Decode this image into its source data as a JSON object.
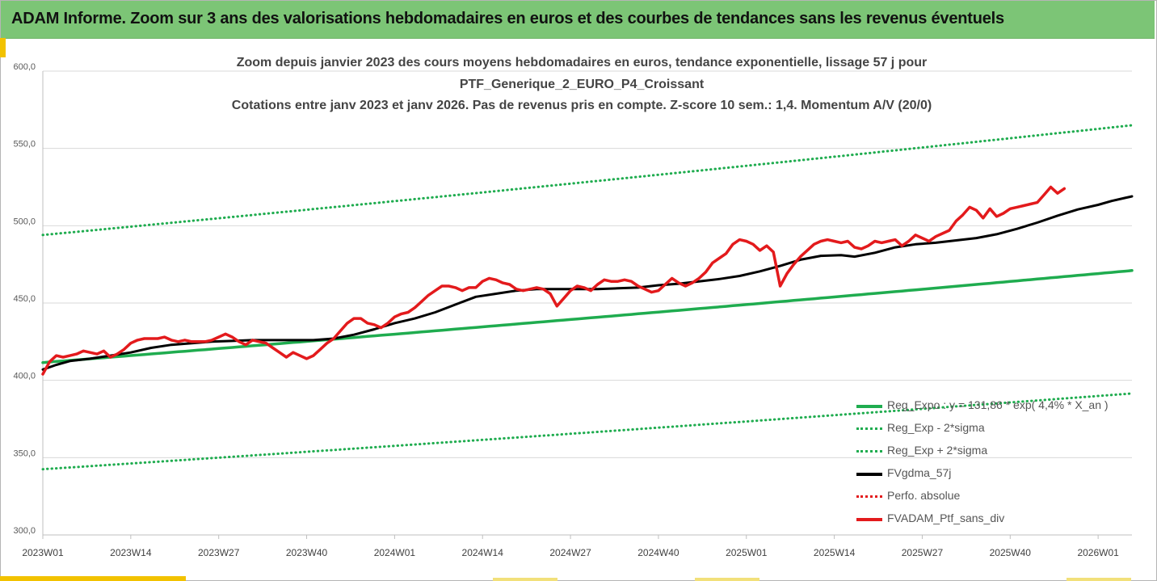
{
  "banner": {
    "title": "ADAM Informe. Zoom sur 3 ans des valorisations hebdomadaires en euros et des courbes de tendances sans les revenus éventuels"
  },
  "colors": {
    "banner_bg": "#7cc576",
    "accent": "#f2c200",
    "green_line": "#1fac4f",
    "black_line": "#000000",
    "red_line": "#e31a1c"
  },
  "chart_data": {
    "type": "line",
    "title_lines": [
      "Zoom depuis janvier 2023 des cours moyens hebdomadaires  en euros, tendance exponentielle, lissage 57 j pour",
      "PTF_Generique_2_EURO_P4_Croissant",
      "Cotations entre janv 2023 et janv 2026. Pas de revenus pris en compte. Z-score 10 sem.: 1,4. Momentum A/V (20/0)"
    ],
    "ylim": [
      300,
      600
    ],
    "yticks": [
      300,
      350,
      400,
      450,
      500,
      550,
      600
    ],
    "ytick_labels": [
      "300,0",
      "350,0",
      "400,0",
      "450,0",
      "500,0",
      "550,0",
      "600,0"
    ],
    "x_range_weeks": [
      0,
      161
    ],
    "xticks": [
      {
        "week": 0,
        "label": "2023W01"
      },
      {
        "week": 13,
        "label": "2023W14"
      },
      {
        "week": 26,
        "label": "2023W27"
      },
      {
        "week": 39,
        "label": "2023W40"
      },
      {
        "week": 52,
        "label": "2024W01"
      },
      {
        "week": 65,
        "label": "2024W14"
      },
      {
        "week": 78,
        "label": "2024W27"
      },
      {
        "week": 91,
        "label": "2024W40"
      },
      {
        "week": 104,
        "label": "2025W01"
      },
      {
        "week": 117,
        "label": "2025W14"
      },
      {
        "week": 130,
        "label": "2025W27"
      },
      {
        "week": 143,
        "label": "2025W40"
      },
      {
        "week": 156,
        "label": "2026W01"
      }
    ],
    "series": [
      {
        "name": "Reg_Expo : y = 131,86 * exp( 4,4% *  X_an )",
        "style": "solid",
        "color": "#1fac4f",
        "kind": "exp",
        "start": 411.5,
        "end": 471
      },
      {
        "name": "Reg_Exp - 2*sigma",
        "style": "dotted",
        "color": "#1fac4f",
        "kind": "exp",
        "start": 342.5,
        "end": 391.5
      },
      {
        "name": "Reg_Exp + 2*sigma",
        "style": "dotted",
        "color": "#1fac4f",
        "kind": "exp",
        "start": 494,
        "end": 565
      },
      {
        "name": "FVgdma_57j",
        "style": "solid",
        "color": "#000000",
        "kind": "points",
        "points": [
          [
            0,
            407
          ],
          [
            2,
            410
          ],
          [
            4,
            412.5
          ],
          [
            7,
            414
          ],
          [
            10,
            416
          ],
          [
            13,
            418
          ],
          [
            16,
            421
          ],
          [
            19,
            423
          ],
          [
            22,
            424
          ],
          [
            25,
            425
          ],
          [
            28,
            425.5
          ],
          [
            31,
            426
          ],
          [
            34,
            426
          ],
          [
            37,
            426
          ],
          [
            40,
            426
          ],
          [
            43,
            427
          ],
          [
            46,
            429.5
          ],
          [
            49,
            433
          ],
          [
            52,
            437
          ],
          [
            55,
            440
          ],
          [
            58,
            444
          ],
          [
            61,
            449
          ],
          [
            64,
            454
          ],
          [
            67,
            456
          ],
          [
            70,
            458
          ],
          [
            73,
            459
          ],
          [
            76,
            459
          ],
          [
            79,
            459
          ],
          [
            82,
            459
          ],
          [
            85,
            459.5
          ],
          [
            88,
            460
          ],
          [
            91,
            461.5
          ],
          [
            94,
            462.5
          ],
          [
            97,
            464
          ],
          [
            100,
            465.5
          ],
          [
            103,
            467.5
          ],
          [
            106,
            470.5
          ],
          [
            109,
            474
          ],
          [
            112,
            478
          ],
          [
            115,
            480.5
          ],
          [
            118,
            481
          ],
          [
            120,
            480
          ],
          [
            123,
            482.5
          ],
          [
            126,
            486
          ],
          [
            129,
            488
          ],
          [
            132,
            489
          ],
          [
            135,
            490.5
          ],
          [
            138,
            492
          ],
          [
            141,
            494.5
          ],
          [
            144,
            498
          ],
          [
            147,
            502
          ],
          [
            150,
            506.5
          ],
          [
            153,
            510.5
          ],
          [
            156,
            513.5
          ],
          [
            158,
            516
          ],
          [
            160,
            518
          ],
          [
            161,
            519
          ]
        ]
      },
      {
        "name": "Perfo. absolue",
        "style": "dotted",
        "color": "#e31a1c",
        "kind": "none"
      },
      {
        "name": "FVADAM_Ptf_sans_div",
        "style": "solid",
        "color": "#e31a1c",
        "kind": "points",
        "points": [
          [
            0,
            404
          ],
          [
            1,
            412
          ],
          [
            2,
            416
          ],
          [
            3,
            415
          ],
          [
            4,
            416
          ],
          [
            5,
            417
          ],
          [
            6,
            419
          ],
          [
            7,
            418
          ],
          [
            8,
            417
          ],
          [
            9,
            419
          ],
          [
            10,
            415
          ],
          [
            11,
            417
          ],
          [
            12,
            420
          ],
          [
            13,
            424
          ],
          [
            14,
            426
          ],
          [
            15,
            427
          ],
          [
            16,
            427
          ],
          [
            17,
            427
          ],
          [
            18,
            428
          ],
          [
            19,
            426
          ],
          [
            20,
            425
          ],
          [
            21,
            426
          ],
          [
            22,
            425
          ],
          [
            23,
            425
          ],
          [
            24,
            425
          ],
          [
            25,
            426
          ],
          [
            26,
            428
          ],
          [
            27,
            430
          ],
          [
            28,
            428
          ],
          [
            29,
            425
          ],
          [
            30,
            423
          ],
          [
            31,
            426
          ],
          [
            32,
            425
          ],
          [
            33,
            424
          ],
          [
            34,
            421
          ],
          [
            35,
            418
          ],
          [
            36,
            415
          ],
          [
            37,
            418
          ],
          [
            38,
            416
          ],
          [
            39,
            414
          ],
          [
            40,
            416
          ],
          [
            41,
            420
          ],
          [
            42,
            424
          ],
          [
            43,
            427
          ],
          [
            44,
            432
          ],
          [
            45,
            437
          ],
          [
            46,
            440
          ],
          [
            47,
            440
          ],
          [
            48,
            437
          ],
          [
            49,
            436
          ],
          [
            50,
            434
          ],
          [
            51,
            437
          ],
          [
            52,
            441
          ],
          [
            53,
            443
          ],
          [
            54,
            444
          ],
          [
            55,
            447
          ],
          [
            56,
            451
          ],
          [
            57,
            455
          ],
          [
            58,
            458
          ],
          [
            59,
            461
          ],
          [
            60,
            461
          ],
          [
            61,
            460
          ],
          [
            62,
            458
          ],
          [
            63,
            460
          ],
          [
            64,
            460
          ],
          [
            65,
            464
          ],
          [
            66,
            466
          ],
          [
            67,
            465
          ],
          [
            68,
            463
          ],
          [
            69,
            462
          ],
          [
            70,
            459
          ],
          [
            71,
            458
          ],
          [
            72,
            459
          ],
          [
            73,
            460
          ],
          [
            74,
            459
          ],
          [
            75,
            456
          ],
          [
            76,
            448
          ],
          [
            77,
            453
          ],
          [
            78,
            458
          ],
          [
            79,
            461
          ],
          [
            80,
            460
          ],
          [
            81,
            458
          ],
          [
            82,
            462
          ],
          [
            83,
            465
          ],
          [
            84,
            464
          ],
          [
            85,
            464
          ],
          [
            86,
            465
          ],
          [
            87,
            464
          ],
          [
            88,
            461
          ],
          [
            89,
            459
          ],
          [
            90,
            457
          ],
          [
            91,
            458
          ],
          [
            92,
            462
          ],
          [
            93,
            466
          ],
          [
            94,
            463
          ],
          [
            95,
            461
          ],
          [
            96,
            463
          ],
          [
            97,
            466
          ],
          [
            98,
            470
          ],
          [
            99,
            476
          ],
          [
            100,
            479
          ],
          [
            101,
            482
          ],
          [
            102,
            488
          ],
          [
            103,
            491
          ],
          [
            104,
            490
          ],
          [
            105,
            488
          ],
          [
            106,
            484
          ],
          [
            107,
            487
          ],
          [
            108,
            483
          ],
          [
            109,
            461
          ],
          [
            110,
            469
          ],
          [
            111,
            475
          ],
          [
            112,
            480
          ],
          [
            113,
            484
          ],
          [
            114,
            488
          ],
          [
            115,
            490
          ],
          [
            116,
            491
          ],
          [
            117,
            490
          ],
          [
            118,
            489
          ],
          [
            119,
            490
          ],
          [
            120,
            486
          ],
          [
            121,
            485
          ],
          [
            122,
            487
          ],
          [
            123,
            490
          ],
          [
            124,
            489
          ],
          [
            125,
            490
          ],
          [
            126,
            491
          ],
          [
            127,
            487
          ],
          [
            128,
            490
          ],
          [
            129,
            494
          ],
          [
            130,
            492
          ],
          [
            131,
            490
          ],
          [
            132,
            493
          ],
          [
            133,
            495
          ],
          [
            134,
            497
          ],
          [
            135,
            503
          ],
          [
            136,
            507
          ],
          [
            137,
            512
          ],
          [
            138,
            510
          ],
          [
            139,
            505
          ],
          [
            140,
            511
          ],
          [
            141,
            506
          ],
          [
            142,
            508
          ],
          [
            143,
            511
          ],
          [
            144,
            512
          ],
          [
            145,
            513
          ],
          [
            146,
            514
          ],
          [
            147,
            515
          ],
          [
            148,
            520
          ],
          [
            149,
            525
          ],
          [
            150,
            521
          ],
          [
            151,
            524
          ]
        ]
      }
    ],
    "legend_position": "lower-right"
  }
}
